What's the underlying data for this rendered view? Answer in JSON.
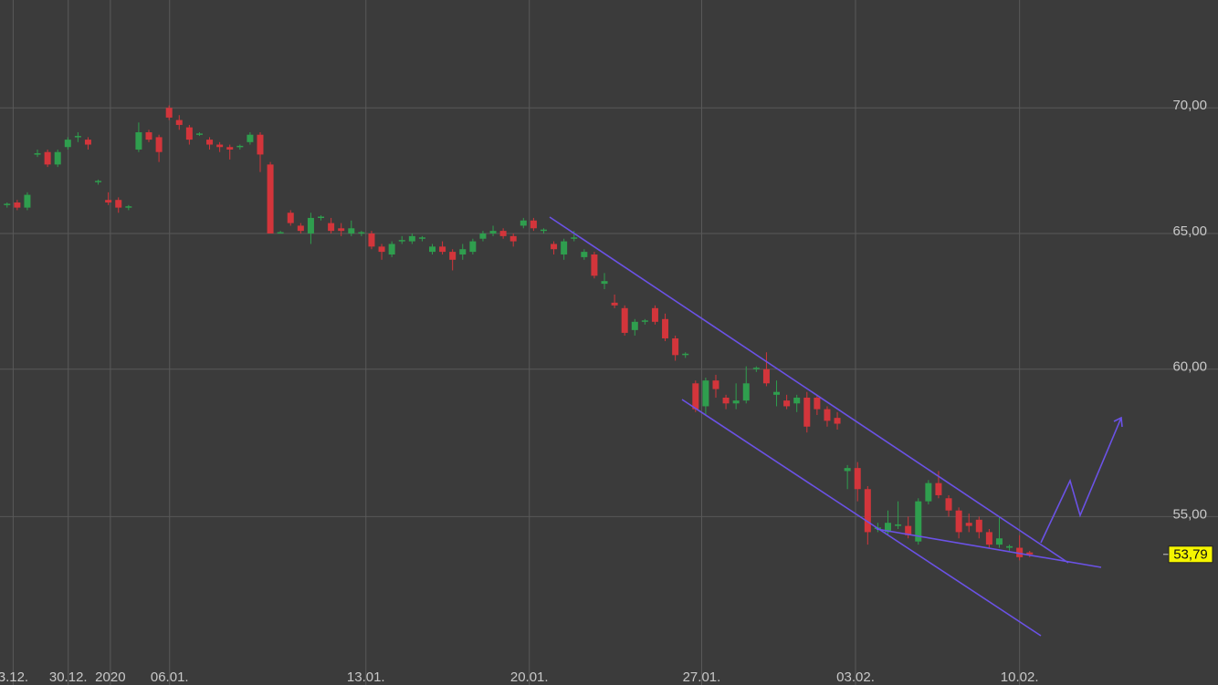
{
  "chart_data": {
    "type": "candlestick",
    "log_scale": true,
    "grid": true,
    "up_color": "#2f9e4e",
    "down_color": "#d3353b",
    "x": [
      0,
      1,
      2,
      3,
      4,
      5,
      6,
      7,
      8,
      9,
      10,
      11,
      12,
      13,
      14,
      15,
      16,
      17,
      18,
      19,
      20,
      21,
      22,
      23,
      24,
      25,
      26,
      27,
      28,
      29,
      30,
      31,
      32,
      33,
      34,
      35,
      36,
      37,
      38,
      39,
      40,
      41,
      42,
      43,
      44,
      45,
      46,
      47,
      48,
      49,
      50,
      51,
      52,
      53,
      54,
      55,
      56,
      57,
      58,
      59,
      60,
      61,
      62,
      63,
      64,
      65,
      66,
      67,
      68,
      69,
      70,
      71,
      72,
      73,
      74,
      75,
      76,
      77,
      78,
      79,
      80,
      81,
      82,
      83,
      84,
      85,
      86,
      87,
      88,
      89,
      90,
      91,
      92,
      93,
      94,
      95,
      96,
      97,
      98,
      99,
      100,
      101
    ],
    "open": [
      66.1,
      66.2,
      66.0,
      68.1,
      68.2,
      67.7,
      68.4,
      68.8,
      68.7,
      67.0,
      66.3,
      66.3,
      66.0,
      68.3,
      69.0,
      68.8,
      70.0,
      69.5,
      69.2,
      68.9,
      68.7,
      68.5,
      68.4,
      68.4,
      68.6,
      68.9,
      67.7,
      65.0,
      65.8,
      65.3,
      65.0,
      65.6,
      65.4,
      65.2,
      65.0,
      65.0,
      65.0,
      64.5,
      64.2,
      64.7,
      64.7,
      64.8,
      64.3,
      64.5,
      64.3,
      64.2,
      64.3,
      64.8,
      65.0,
      65.1,
      64.9,
      65.3,
      65.5,
      65.1,
      64.6,
      64.2,
      64.8,
      64.1,
      64.2,
      63.1,
      62.4,
      62.2,
      61.4,
      61.7,
      62.2,
      61.8,
      61.1,
      60.5,
      59.5,
      58.7,
      59.6,
      59.0,
      58.8,
      58.9,
      60.0,
      60.0,
      59.1,
      58.9,
      58.8,
      59.0,
      59.0,
      58.6,
      58.3,
      56.5,
      56.6,
      55.9,
      54.6,
      54.5,
      54.7,
      54.7,
      54.2,
      55.5,
      56.1,
      55.6,
      55.2,
      54.8,
      54.9,
      54.5,
      54.1,
      54.0,
      54.0,
      53.85
    ],
    "high": [
      66.2,
      66.3,
      66.6,
      68.3,
      68.3,
      68.3,
      68.8,
      69.0,
      68.8,
      67.1,
      66.6,
      66.4,
      66.1,
      69.4,
      69.1,
      68.9,
      70.1,
      69.7,
      69.3,
      69.0,
      68.8,
      68.6,
      68.5,
      68.5,
      69.0,
      69.0,
      67.8,
      65.1,
      65.9,
      65.4,
      65.8,
      65.7,
      65.6,
      65.4,
      65.5,
      65.1,
      65.1,
      64.6,
      64.7,
      64.9,
      65.0,
      64.9,
      64.6,
      64.7,
      64.4,
      64.6,
      64.8,
      65.1,
      65.3,
      65.2,
      65.0,
      65.6,
      65.6,
      65.2,
      64.7,
      64.8,
      65.1,
      64.4,
      64.3,
      63.5,
      62.7,
      62.3,
      61.8,
      61.8,
      62.3,
      62.0,
      61.2,
      60.6,
      59.6,
      59.7,
      59.8,
      59.1,
      59.5,
      60.1,
      60.1,
      60.6,
      59.6,
      59.1,
      59.1,
      59.2,
      59.1,
      58.7,
      58.5,
      56.7,
      56.8,
      56.0,
      54.8,
      55.2,
      55.5,
      55.0,
      55.6,
      56.2,
      56.5,
      55.7,
      55.3,
      55.1,
      55.0,
      54.6,
      55.0,
      54.1,
      54.4,
      53.9
    ],
    "low": [
      66.0,
      65.9,
      65.9,
      68.0,
      67.6,
      67.6,
      68.3,
      68.6,
      68.3,
      66.9,
      66.1,
      65.8,
      65.9,
      68.2,
      68.6,
      67.8,
      69.5,
      69.1,
      68.5,
      68.85,
      68.3,
      68.2,
      67.9,
      68.3,
      68.5,
      67.4,
      65.0,
      65.0,
      65.3,
      65.0,
      64.6,
      65.5,
      65.0,
      64.9,
      64.9,
      64.9,
      64.4,
      64.0,
      64.1,
      64.6,
      64.6,
      64.7,
      64.2,
      64.2,
      63.6,
      64.0,
      64.2,
      64.7,
      64.9,
      64.8,
      64.5,
      65.2,
      65.1,
      65.0,
      64.2,
      64.0,
      64.7,
      64.0,
      63.3,
      62.9,
      62.2,
      61.2,
      61.2,
      61.6,
      61.6,
      61.0,
      60.3,
      60.4,
      58.5,
      58.4,
      59.0,
      58.6,
      58.6,
      58.8,
      59.9,
      59.4,
      58.7,
      58.6,
      58.5,
      57.8,
      58.4,
      58.0,
      57.9,
      55.9,
      55.5,
      54.1,
      54.5,
      54.4,
      54.6,
      54.3,
      54.1,
      55.4,
      55.6,
      55.0,
      54.3,
      54.5,
      54.3,
      54.0,
      54.0,
      53.9,
      53.6,
      53.7
    ],
    "close": [
      66.15,
      66.0,
      66.5,
      68.15,
      67.7,
      68.2,
      68.7,
      68.85,
      68.5,
      67.05,
      66.2,
      66.0,
      66.05,
      69.0,
      68.7,
      68.2,
      69.6,
      69.3,
      68.7,
      68.95,
      68.5,
      68.4,
      68.3,
      68.45,
      68.9,
      68.1,
      65.0,
      65.05,
      65.4,
      65.1,
      65.6,
      65.65,
      65.1,
      65.1,
      65.2,
      65.05,
      64.5,
      64.3,
      64.6,
      64.75,
      64.9,
      64.85,
      64.5,
      64.3,
      64.0,
      64.4,
      64.7,
      65.0,
      65.1,
      64.9,
      64.7,
      65.5,
      65.2,
      65.15,
      64.4,
      64.7,
      64.85,
      64.3,
      63.4,
      63.2,
      62.3,
      61.3,
      61.7,
      61.75,
      61.7,
      61.1,
      60.5,
      60.55,
      58.6,
      59.6,
      59.3,
      58.8,
      58.9,
      59.5,
      60.05,
      59.5,
      59.2,
      58.7,
      59.0,
      58.0,
      58.6,
      58.2,
      58.1,
      56.6,
      55.9,
      54.5,
      54.65,
      54.8,
      54.75,
      54.4,
      55.5,
      56.1,
      55.7,
      55.2,
      54.5,
      54.7,
      54.5,
      54.1,
      54.3,
      54.05,
      53.7,
      53.79
    ],
    "xlim": [
      -0.7,
      119.6
    ],
    "ylim": [
      49.8,
      74.6
    ],
    "xticks": [
      {
        "value": 0.6,
        "label": "3.12."
      },
      {
        "value": 6.04,
        "label": "30.12."
      },
      {
        "value": 10.2,
        "label": "2020"
      },
      {
        "value": 16.05,
        "label": "06.01."
      },
      {
        "value": 35.44,
        "label": "13.01."
      },
      {
        "value": 51.58,
        "label": "20.01."
      },
      {
        "value": 68.6,
        "label": "27.01."
      },
      {
        "value": 83.8,
        "label": "03.02."
      },
      {
        "value": 100.0,
        "label": "10.02."
      }
    ],
    "yticks": [
      {
        "value": 55,
        "label": "55,00"
      },
      {
        "value": 60,
        "label": "60,00"
      },
      {
        "value": 65,
        "label": "65,00"
      },
      {
        "value": 70,
        "label": "70,00"
      }
    ],
    "last_price": {
      "value": 53.79,
      "label": "53,79"
    }
  }
}
